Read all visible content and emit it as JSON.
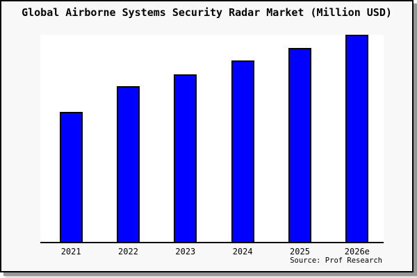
{
  "title": "Global Airborne Systems Security Radar Market (Million USD)",
  "source_label": "Source: Prof Research",
  "colors": {
    "bar_fill": "#0000ff",
    "bar_border": "#000000",
    "frame_background": "#f8f8f8",
    "plot_background": "#ffffff",
    "axis": "#000000",
    "text": "#000000"
  },
  "chart_data": {
    "type": "bar",
    "title": "Global Airborne Systems Security Radar Market (Million USD)",
    "categories": [
      "2021",
      "2022",
      "2023",
      "2024",
      "2025",
      "2026e"
    ],
    "values_relative_pct": [
      62.7,
      75.0,
      81.0,
      87.6,
      93.7,
      100.0
    ],
    "xlabel": "",
    "ylabel": "",
    "ylim": [
      0,
      100
    ],
    "y_axis_tick_labels_visible": false,
    "grid": false,
    "legend_position": "none",
    "bar_color": "#0000ff",
    "source": "Source: Prof Research"
  }
}
